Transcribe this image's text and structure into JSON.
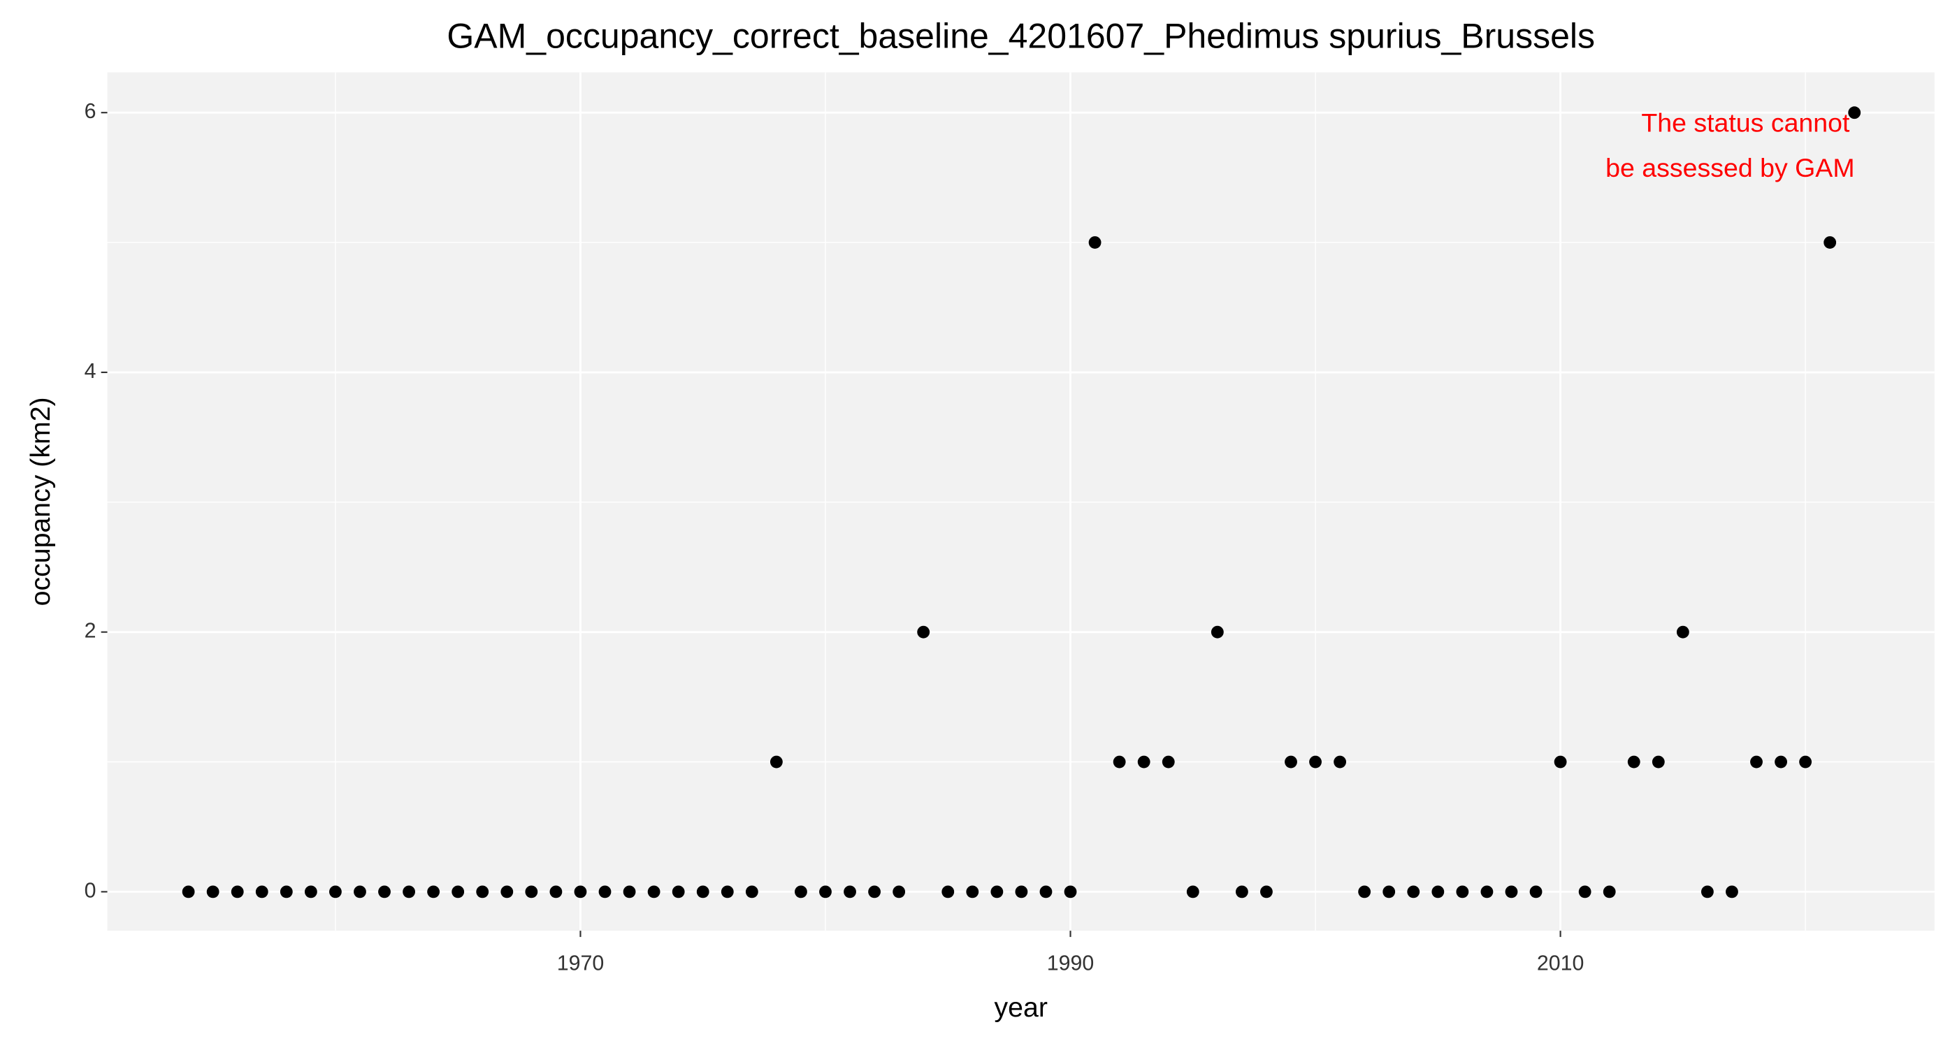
{
  "chart_data": {
    "type": "scatter",
    "title": "GAM_occupancy_correct_baseline_4201607_Phedimus spurius_Brussels",
    "x_label": "year",
    "y_label": "occupancy (km2)",
    "annotation": [
      "The status cannot",
      "be assessed by GAM"
    ],
    "annotation_color": "#ff0000",
    "x": [
      1954,
      1955,
      1956,
      1957,
      1958,
      1959,
      1960,
      1961,
      1962,
      1963,
      1964,
      1965,
      1966,
      1967,
      1968,
      1969,
      1970,
      1971,
      1972,
      1973,
      1974,
      1975,
      1976,
      1977,
      1978,
      1979,
      1980,
      1981,
      1982,
      1983,
      1984,
      1985,
      1986,
      1987,
      1988,
      1989,
      1990,
      1991,
      1992,
      1993,
      1994,
      1995,
      1996,
      1997,
      1998,
      1999,
      2000,
      2001,
      2002,
      2003,
      2004,
      2005,
      2006,
      2007,
      2008,
      2009,
      2010,
      2011,
      2012,
      2013,
      2014,
      2015,
      2016,
      2017,
      2018,
      2019,
      2020,
      2021,
      2022
    ],
    "values": [
      0,
      0,
      0,
      0,
      0,
      0,
      0,
      0,
      0,
      0,
      0,
      0,
      0,
      0,
      0,
      0,
      0,
      0,
      0,
      0,
      0,
      0,
      0,
      0,
      1,
      0,
      0,
      0,
      0,
      0,
      2,
      0,
      0,
      0,
      0,
      0,
      0,
      5,
      1,
      1,
      1,
      0,
      2,
      0,
      0,
      1,
      1,
      1,
      0,
      0,
      0,
      0,
      0,
      0,
      0,
      0,
      1,
      0,
      0,
      1,
      1,
      2,
      0,
      0,
      1,
      1,
      1,
      5,
      6
    ],
    "color": "#000000",
    "xlim": [
      1950.69,
      2025.27
    ],
    "ylim": [
      -0.3,
      6.31
    ],
    "xticks": [
      1970,
      1990,
      2010
    ],
    "yticks": [
      0,
      2,
      4,
      6
    ],
    "grid": true
  }
}
